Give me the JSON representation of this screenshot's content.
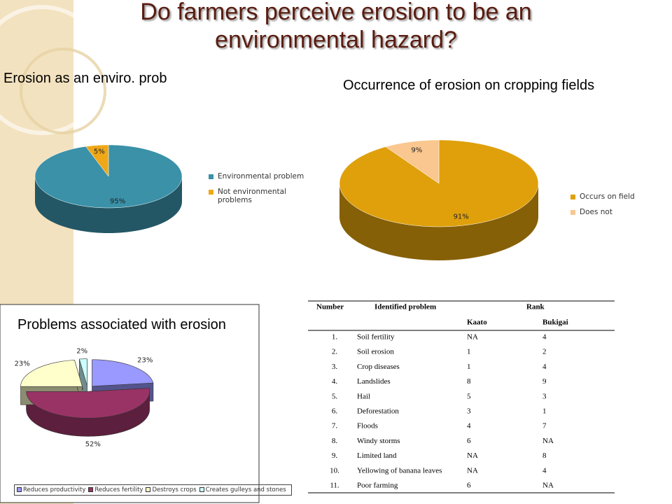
{
  "title": "Do farmers perceive erosion to be an environmental hazard?",
  "chart_data": [
    {
      "type": "pie",
      "title": "Erosion as an enviro. prob",
      "categories": [
        "Environmental problem",
        "Not environmental problems"
      ],
      "values": [
        95,
        5
      ],
      "value_labels": [
        "95%",
        "5%"
      ],
      "colors": [
        "#3a91a8",
        "#f0a818"
      ],
      "legend": "right"
    },
    {
      "type": "pie",
      "title": "Occurrence of erosion on cropping fields",
      "categories": [
        "Occurs on field",
        "Does not"
      ],
      "values": [
        91,
        9
      ],
      "value_labels": [
        "91%",
        "9%"
      ],
      "colors": [
        "#dfa00c",
        "#f9c78f"
      ],
      "legend": "right"
    },
    {
      "type": "pie",
      "title": "Problems associated with erosion",
      "categories": [
        "Reduces productivity",
        "Reduces fertility",
        "Destroys crops",
        "Creates gulleys and stones"
      ],
      "values": [
        23,
        52,
        23,
        2
      ],
      "value_labels": [
        "23%",
        "52%",
        "23%",
        "2%"
      ],
      "colors": [
        "#9999ff",
        "#993366",
        "#ffffcc",
        "#ccffff"
      ],
      "legend": "bottom"
    }
  ],
  "table": {
    "header": [
      "Number",
      "Identified problem",
      "Rank"
    ],
    "subheader": [
      "Kaato",
      "Bukigai"
    ],
    "rows": [
      [
        "1.",
        "Soil fertility",
        "NA",
        "4"
      ],
      [
        "2.",
        "Soil erosion",
        "1",
        "2"
      ],
      [
        "3.",
        "Crop diseases",
        "1",
        "4"
      ],
      [
        "4.",
        "Landslides",
        "8",
        "9"
      ],
      [
        "5.",
        "Hail",
        "5",
        "3"
      ],
      [
        "6.",
        "Deforestation",
        "3",
        "1"
      ],
      [
        "7.",
        "Floods",
        "4",
        "7"
      ],
      [
        "8.",
        "Windy storms",
        "6",
        "NA"
      ],
      [
        "9.",
        "Limited land",
        "NA",
        "8"
      ],
      [
        "10.",
        "Yellowing of banana leaves",
        "NA",
        "4"
      ],
      [
        "11.",
        "Poor farming",
        "6",
        "NA"
      ]
    ]
  }
}
